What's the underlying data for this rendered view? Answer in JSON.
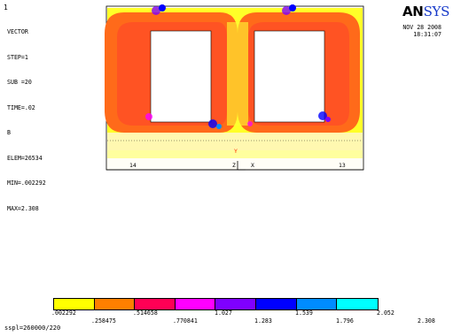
{
  "window_number": "1",
  "plot_type": "VECTOR",
  "info_lines": [
    "STEP=1",
    "SUB =20",
    "TIME=.02",
    "B",
    "ELEM=26534",
    "MIN=.002292",
    "MAX=2.308"
  ],
  "logo": {
    "bold": "AN",
    "rest": "SYS"
  },
  "date": "NOV 28 2008",
  "time": "18:31:07",
  "markers": {
    "left": "14",
    "right": "13",
    "axis_y": "Y",
    "axis_z": "Z",
    "axis_x": "X"
  },
  "legend": {
    "colors": [
      "#ffff00",
      "#ff7f00",
      "#ff0055",
      "#ff00ff",
      "#7f00ff",
      "#0000ff",
      "#008cff",
      "#00ffff"
    ],
    "upper_labels": [
      ".002292",
      ".514658",
      "1.027",
      "1.539",
      "2.052"
    ],
    "lower_labels": [
      ".258475",
      ".770841",
      "1.283",
      "1.796",
      "2.308"
    ]
  },
  "caption": "sspl=260000/220"
}
